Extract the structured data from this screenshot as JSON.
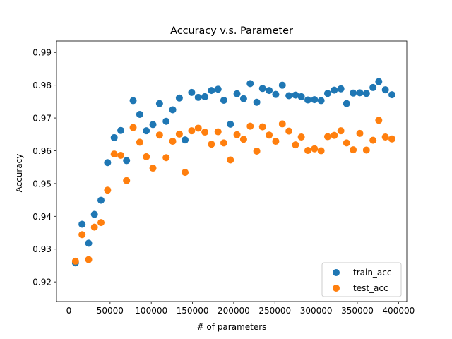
{
  "chart_data": {
    "type": "scatter",
    "title": "Accuracy v.s. Parameter",
    "xlabel": "# of parameters",
    "ylabel": "Accuracy",
    "xlim": [
      -15000,
      410000
    ],
    "ylim": [
      0.914,
      0.9935
    ],
    "xticks": [
      0,
      50000,
      100000,
      150000,
      200000,
      250000,
      300000,
      350000,
      400000
    ],
    "xtick_labels": [
      "0",
      "50000",
      "100000",
      "150000",
      "200000",
      "250000",
      "300000",
      "350000",
      "400000"
    ],
    "yticks": [
      0.92,
      0.93,
      0.94,
      0.95,
      0.96,
      0.97,
      0.98,
      0.99
    ],
    "ytick_labels": [
      "0.92",
      "0.93",
      "0.94",
      "0.95",
      "0.96",
      "0.97",
      "0.98",
      "0.99"
    ],
    "grid": false,
    "legend_position": "lower-right",
    "series": [
      {
        "name": "train_acc",
        "color": "#1f77b4",
        "x": [
          8000,
          16000,
          24000,
          31000,
          39000,
          47000,
          55000,
          63000,
          70000,
          78000,
          86000,
          94000,
          102000,
          110000,
          118000,
          126000,
          134000,
          141000,
          149000,
          157000,
          165000,
          173000,
          181000,
          188000,
          196000,
          204000,
          212000,
          220000,
          228000,
          235000,
          243000,
          251000,
          259000,
          267000,
          275000,
          282000,
          290000,
          298000,
          306000,
          314000,
          322000,
          330000,
          337000,
          345000,
          353000,
          361000,
          369000,
          376000,
          384000,
          392000
        ],
        "y": [
          0.9258,
          0.9376,
          0.9318,
          0.9406,
          0.9449,
          0.9564,
          0.964,
          0.9662,
          0.957,
          0.9753,
          0.9711,
          0.9661,
          0.968,
          0.9744,
          0.969,
          0.9725,
          0.9761,
          0.9633,
          0.9778,
          0.9763,
          0.9765,
          0.9784,
          0.9788,
          0.9754,
          0.9681,
          0.9774,
          0.9759,
          0.9805,
          0.9748,
          0.979,
          0.9784,
          0.9772,
          0.98,
          0.9768,
          0.977,
          0.9765,
          0.9755,
          0.9756,
          0.9753,
          0.9775,
          0.9785,
          0.9789,
          0.9744,
          0.9776,
          0.9777,
          0.9775,
          0.9793,
          0.9811,
          0.9786,
          0.9771
        ]
      },
      {
        "name": "test_acc",
        "color": "#ff7f0e",
        "x": [
          8000,
          16000,
          24000,
          31000,
          39000,
          47000,
          55000,
          63000,
          70000,
          78000,
          86000,
          94000,
          102000,
          110000,
          118000,
          126000,
          134000,
          141000,
          149000,
          157000,
          165000,
          173000,
          181000,
          188000,
          196000,
          204000,
          212000,
          220000,
          228000,
          235000,
          243000,
          251000,
          259000,
          267000,
          275000,
          282000,
          290000,
          298000,
          306000,
          314000,
          322000,
          330000,
          337000,
          345000,
          353000,
          361000,
          369000,
          376000,
          384000,
          392000
        ],
        "y": [
          0.9263,
          0.9344,
          0.9268,
          0.9367,
          0.9381,
          0.948,
          0.959,
          0.9586,
          0.9509,
          0.9671,
          0.9626,
          0.9582,
          0.9547,
          0.9648,
          0.9579,
          0.9629,
          0.9651,
          0.9534,
          0.9661,
          0.9669,
          0.9657,
          0.962,
          0.9658,
          0.9624,
          0.9572,
          0.9649,
          0.9635,
          0.9675,
          0.9599,
          0.9673,
          0.9648,
          0.9629,
          0.9682,
          0.966,
          0.9618,
          0.9642,
          0.9601,
          0.9606,
          0.96,
          0.9643,
          0.9647,
          0.9661,
          0.9624,
          0.9603,
          0.9653,
          0.9602,
          0.9632,
          0.9693,
          0.9642,
          0.9636
        ]
      }
    ]
  }
}
